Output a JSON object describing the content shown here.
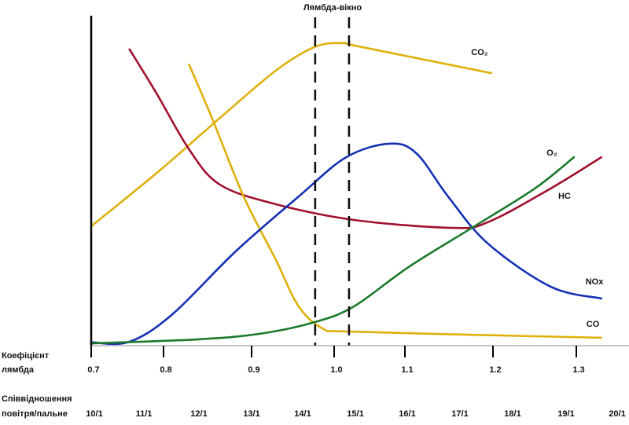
{
  "chart_data": {
    "type": "line",
    "title": "",
    "annotation": "Лямбда-вікно",
    "lambda_window": [
      0.977,
      1.021
    ],
    "xlabel": "Коефіцієнт лямбда",
    "xlabel_lines": [
      "Коефіцієнт",
      "лямбда"
    ],
    "x_ticks": [
      0.7,
      0.8,
      0.9,
      1.0,
      1.1,
      1.2,
      1.3
    ],
    "x_tick_labels": [
      "0.7",
      "0.8",
      "0.9",
      "1.0",
      "1.1",
      "1.2",
      "1.3"
    ],
    "secondary_xlabel_lines": [
      "Співвідношення",
      "повітря/пальне"
    ],
    "secondary_x_tick_labels": [
      "10/1",
      "11/1",
      "12/1",
      "13/1",
      "14/1",
      "15/1",
      "16/1",
      "17/1",
      "18/1",
      "19/1",
      "20/1"
    ],
    "ylim": [
      0,
      100
    ],
    "grid": false,
    "legend": "inline labels at curve ends",
    "series": [
      {
        "name": "CO₂",
        "color": "#dfb00a",
        "points": [
          [
            0.7,
            36.2
          ],
          [
            0.791,
            52.4
          ],
          [
            0.864,
            69.0
          ],
          [
            0.929,
            83.3
          ],
          [
            0.976,
            90.5
          ],
          [
            1.011,
            91.7
          ],
          [
            1.039,
            90.5
          ],
          [
            1.198,
            82.6
          ]
        ]
      },
      {
        "name": "HC",
        "color": "#a0122e",
        "points": [
          [
            0.753,
            89.8
          ],
          [
            0.791,
            76.2
          ],
          [
            0.829,
            59.5
          ],
          [
            0.864,
            48.8
          ],
          [
            0.929,
            42.9
          ],
          [
            1.028,
            38.1
          ],
          [
            1.154,
            35.7
          ],
          [
            1.194,
            37.4
          ],
          [
            1.269,
            47.6
          ],
          [
            1.33,
            57.1
          ]
        ]
      },
      {
        "name": "CO",
        "color": "#dfb00a",
        "points": [
          [
            0.829,
            85.2
          ],
          [
            0.855,
            69.0
          ],
          [
            0.891,
            45.2
          ],
          [
            0.929,
            26.2
          ],
          [
            0.957,
            11.9
          ],
          [
            0.986,
            5.2
          ],
          [
            1.017,
            4.3
          ],
          [
            1.176,
            3.3
          ],
          [
            1.33,
            2.4
          ]
        ]
      },
      {
        "name": "NOx",
        "color": "#1632b4",
        "points": [
          [
            0.7,
            1.0
          ],
          [
            0.753,
            1.2
          ],
          [
            0.81,
            9.5
          ],
          [
            0.882,
            28.6
          ],
          [
            0.957,
            45.2
          ],
          [
            1.017,
            57.1
          ],
          [
            1.078,
            61.2
          ],
          [
            1.113,
            58.3
          ],
          [
            1.149,
            45.2
          ],
          [
            1.194,
            31.0
          ],
          [
            1.269,
            17.9
          ],
          [
            1.33,
            14.3
          ]
        ]
      },
      {
        "name": "O₂",
        "color": "#1b7a2c",
        "points": [
          [
            0.7,
            0.7
          ],
          [
            0.838,
            1.9
          ],
          [
            0.91,
            3.6
          ],
          [
            0.976,
            7.1
          ],
          [
            1.028,
            11.9
          ],
          [
            1.104,
            23.8
          ],
          [
            1.176,
            35.7
          ],
          [
            1.25,
            47.6
          ],
          [
            1.297,
            57.1
          ]
        ]
      }
    ]
  }
}
